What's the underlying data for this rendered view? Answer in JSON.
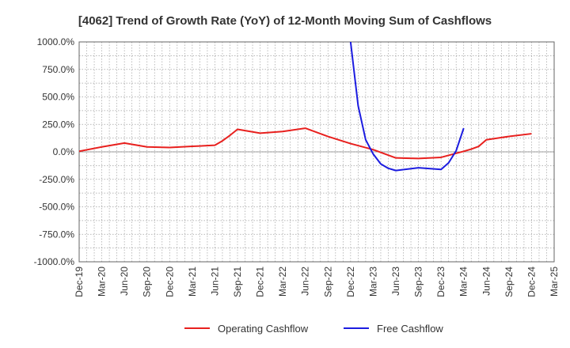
{
  "chart_data": {
    "type": "line",
    "title": "[4062]  Trend of Growth Rate (YoY) of 12-Month Moving Sum of Cashflows",
    "xlabel": "",
    "ylabel": "",
    "ylim": [
      -1000,
      1000
    ],
    "y_ticks": [
      1000,
      750,
      500,
      250,
      0,
      -250,
      -500,
      -750,
      -1000
    ],
    "y_tick_labels": [
      "1000.0%",
      "750.0%",
      "500.0%",
      "250.0%",
      "0.0%",
      "-250.0%",
      "-500.0%",
      "-750.0%",
      "-1000.0%"
    ],
    "x_tick_labels": [
      "Dec-19",
      "Mar-20",
      "Jun-20",
      "Sep-20",
      "Dec-20",
      "Mar-21",
      "Jun-21",
      "Sep-21",
      "Dec-21",
      "Mar-22",
      "Jun-22",
      "Sep-22",
      "Dec-22",
      "Mar-23",
      "Jun-23",
      "Sep-23",
      "Dec-23",
      "Mar-24",
      "Jun-24",
      "Sep-24",
      "Dec-24",
      "Mar-25"
    ],
    "grid": true,
    "legend_position": "bottom",
    "series": [
      {
        "name": "Operating Cashflow",
        "color": "#e8201e",
        "points": [
          [
            "Dec-19",
            5
          ],
          [
            "Mar-20",
            45
          ],
          [
            "Jun-20",
            80
          ],
          [
            "Sep-20",
            45
          ],
          [
            "Dec-20",
            40
          ],
          [
            "Mar-21",
            50
          ],
          [
            "Jun-21",
            60
          ],
          [
            "Jul-21",
            100
          ],
          [
            "Aug-21",
            150
          ],
          [
            "Sep-21",
            205
          ],
          [
            "Dec-21",
            170
          ],
          [
            "Mar-22",
            185
          ],
          [
            "Jun-22",
            215
          ],
          [
            "Sep-22",
            140
          ],
          [
            "Dec-22",
            75
          ],
          [
            "Mar-23",
            20
          ],
          [
            "Jun-23",
            -55
          ],
          [
            "Sep-23",
            -60
          ],
          [
            "Dec-23",
            -50
          ],
          [
            "Mar-24",
            5
          ],
          [
            "Apr-24",
            25
          ],
          [
            "May-24",
            50
          ],
          [
            "Jun-24",
            110
          ],
          [
            "Sep-24",
            140
          ],
          [
            "Dec-24",
            165
          ]
        ]
      },
      {
        "name": "Free Cashflow",
        "color": "#1c1ce0",
        "points": [
          [
            "Dec-22",
            1000
          ],
          [
            "Jan-23",
            420
          ],
          [
            "Feb-23",
            110
          ],
          [
            "Mar-23",
            -20
          ],
          [
            "Apr-23",
            -110
          ],
          [
            "May-23",
            -150
          ],
          [
            "Jun-23",
            -170
          ],
          [
            "Sep-23",
            -145
          ],
          [
            "Dec-23",
            -160
          ],
          [
            "Jan-24",
            -100
          ],
          [
            "Feb-24",
            10
          ],
          [
            "Mar-24",
            215
          ]
        ]
      }
    ]
  }
}
